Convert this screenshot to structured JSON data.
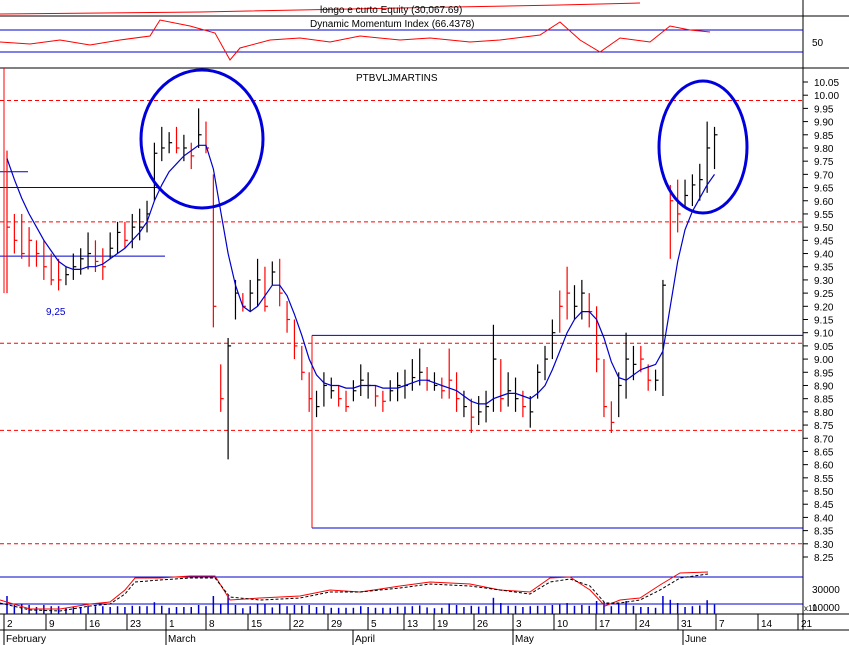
{
  "panels": {
    "equity": {
      "title": "longo e curto Equity (30,067.69)"
    },
    "dmi": {
      "title": "Dynamic Momentum Index (66.4378)",
      "axis_label": "50"
    },
    "main": {
      "title": "PTBVLJMARTINS",
      "annotation": "9,25"
    },
    "volume": {
      "axis_top": "30000",
      "axis_bottom": "10000",
      "unit_label": "x10"
    }
  },
  "colors": {
    "up": "#000000",
    "down": "#ff0000",
    "ma": "#0000cc",
    "line_blue": "#0000cc",
    "dash_red": "#ff0000",
    "circle": "#0000dd"
  },
  "chart_data": {
    "type": "bar",
    "title": "PTBVLJMARTINS",
    "ylim": [
      8.2,
      10.1
    ],
    "yticks": [
      "10.05",
      "10.00",
      "9.95",
      "9.90",
      "9.85",
      "9.80",
      "9.75",
      "9.70",
      "9.65",
      "9.60",
      "9.55",
      "9.50",
      "9.45",
      "9.40",
      "9.35",
      "9.30",
      "9.25",
      "9.20",
      "9.15",
      "9.10",
      "9.05",
      "9.00",
      "8.95",
      "8.90",
      "8.85",
      "8.80",
      "8.75",
      "8.70",
      "8.65",
      "8.60",
      "8.55",
      "8.50",
      "8.45",
      "8.40",
      "8.35",
      "8.30",
      "8.25"
    ],
    "x_day_labels": [
      "2",
      "9",
      "16",
      "23",
      "1",
      "8",
      "15",
      "22",
      "29",
      "5",
      "13",
      "19",
      "26",
      "3",
      "10",
      "17",
      "24",
      "31",
      "7",
      "14",
      "21"
    ],
    "x_month_labels": [
      "February",
      "March",
      "April",
      "May",
      "June"
    ],
    "reference_levels": {
      "red_dashed": [
        9.98,
        9.52,
        9.06,
        8.73,
        8.3
      ],
      "blue_solid": [
        9.71,
        9.65,
        9.39,
        9.09,
        8.36
      ]
    },
    "bars": [
      {
        "h": 9.79,
        "l": 9.25,
        "c": 9.5,
        "up": 0
      },
      {
        "h": 9.55,
        "l": 9.4,
        "c": 9.45,
        "up": 0
      },
      {
        "h": 9.55,
        "l": 9.38,
        "c": 9.4,
        "up": 0
      },
      {
        "h": 9.5,
        "l": 9.35,
        "c": 9.45,
        "up": 0
      },
      {
        "h": 9.45,
        "l": 9.35,
        "c": 9.4,
        "up": 0
      },
      {
        "h": 9.45,
        "l": 9.3,
        "c": 9.35,
        "up": 0
      },
      {
        "h": 9.4,
        "l": 9.28,
        "c": 9.3,
        "up": 0
      },
      {
        "h": 9.38,
        "l": 9.26,
        "c": 9.3,
        "up": 0
      },
      {
        "h": 9.35,
        "l": 9.28,
        "c": 9.32,
        "up": 1
      },
      {
        "h": 9.4,
        "l": 9.3,
        "c": 9.35,
        "up": 1
      },
      {
        "h": 9.42,
        "l": 9.32,
        "c": 9.38,
        "up": 1
      },
      {
        "h": 9.48,
        "l": 9.34,
        "c": 9.4,
        "up": 1
      },
      {
        "h": 9.45,
        "l": 9.33,
        "c": 9.37,
        "up": 0
      },
      {
        "h": 9.42,
        "l": 9.3,
        "c": 9.35,
        "up": 0
      },
      {
        "h": 9.48,
        "l": 9.38,
        "c": 9.42,
        "up": 1
      },
      {
        "h": 9.52,
        "l": 9.4,
        "c": 9.48,
        "up": 1
      },
      {
        "h": 9.52,
        "l": 9.42,
        "c": 9.45,
        "up": 0
      },
      {
        "h": 9.55,
        "l": 9.42,
        "c": 9.5,
        "up": 1
      },
      {
        "h": 9.57,
        "l": 9.45,
        "c": 9.5,
        "up": 1
      },
      {
        "h": 9.6,
        "l": 9.48,
        "c": 9.55,
        "up": 1
      },
      {
        "h": 9.82,
        "l": 9.6,
        "c": 9.78,
        "up": 1
      },
      {
        "h": 9.88,
        "l": 9.75,
        "c": 9.8,
        "up": 1
      },
      {
        "h": 9.86,
        "l": 9.78,
        "c": 9.82,
        "up": 1
      },
      {
        "h": 9.88,
        "l": 9.78,
        "c": 9.8,
        "up": 0
      },
      {
        "h": 9.85,
        "l": 9.75,
        "c": 9.8,
        "up": 1
      },
      {
        "h": 9.82,
        "l": 9.72,
        "c": 9.77,
        "up": 0
      },
      {
        "h": 9.95,
        "l": 9.8,
        "c": 9.85,
        "up": 1
      },
      {
        "h": 9.9,
        "l": 9.78,
        "c": 9.8,
        "up": 0
      },
      {
        "h": 9.7,
        "l": 9.12,
        "c": 9.2,
        "up": 0
      },
      {
        "h": 8.98,
        "l": 8.8,
        "c": 8.85,
        "up": 0
      },
      {
        "h": 9.08,
        "l": 8.62,
        "c": 9.05,
        "up": 1
      },
      {
        "h": 9.3,
        "l": 9.15,
        "c": 9.25,
        "up": 1
      },
      {
        "h": 9.25,
        "l": 9.18,
        "c": 9.2,
        "up": 0
      },
      {
        "h": 9.3,
        "l": 9.18,
        "c": 9.25,
        "up": 1
      },
      {
        "h": 9.38,
        "l": 9.2,
        "c": 9.3,
        "up": 1
      },
      {
        "h": 9.35,
        "l": 9.18,
        "c": 9.2,
        "up": 0
      },
      {
        "h": 9.37,
        "l": 9.28,
        "c": 9.33,
        "up": 1
      },
      {
        "h": 9.38,
        "l": 9.2,
        "c": 9.25,
        "up": 0
      },
      {
        "h": 9.22,
        "l": 9.1,
        "c": 9.15,
        "up": 0
      },
      {
        "h": 9.15,
        "l": 9.0,
        "c": 9.05,
        "up": 0
      },
      {
        "h": 9.05,
        "l": 8.92,
        "c": 8.95,
        "up": 0
      },
      {
        "h": 8.95,
        "l": 8.8,
        "c": 8.85,
        "up": 0
      },
      {
        "h": 8.88,
        "l": 8.78,
        "c": 8.82,
        "up": 1
      },
      {
        "h": 8.95,
        "l": 8.82,
        "c": 8.9,
        "up": 1
      },
      {
        "h": 8.93,
        "l": 8.85,
        "c": 8.88,
        "up": 1
      },
      {
        "h": 8.9,
        "l": 8.82,
        "c": 8.85,
        "up": 0
      },
      {
        "h": 8.88,
        "l": 8.8,
        "c": 8.82,
        "up": 0
      },
      {
        "h": 8.92,
        "l": 8.84,
        "c": 8.88,
        "up": 1
      },
      {
        "h": 8.98,
        "l": 8.86,
        "c": 8.92,
        "up": 1
      },
      {
        "h": 8.95,
        "l": 8.85,
        "c": 8.9,
        "up": 1
      },
      {
        "h": 8.9,
        "l": 8.82,
        "c": 8.86,
        "up": 0
      },
      {
        "h": 8.88,
        "l": 8.8,
        "c": 8.84,
        "up": 0
      },
      {
        "h": 8.92,
        "l": 8.84,
        "c": 8.88,
        "up": 1
      },
      {
        "h": 8.95,
        "l": 8.84,
        "c": 8.9,
        "up": 1
      },
      {
        "h": 8.96,
        "l": 8.85,
        "c": 8.9,
        "up": 1
      },
      {
        "h": 9.0,
        "l": 8.88,
        "c": 8.93,
        "up": 1
      },
      {
        "h": 9.04,
        "l": 8.9,
        "c": 8.95,
        "up": 1
      },
      {
        "h": 8.97,
        "l": 8.88,
        "c": 8.92,
        "up": 0
      },
      {
        "h": 8.95,
        "l": 8.88,
        "c": 8.9,
        "up": 1
      },
      {
        "h": 8.93,
        "l": 8.85,
        "c": 8.88,
        "up": 0
      },
      {
        "h": 9.04,
        "l": 8.85,
        "c": 8.92,
        "up": 0
      },
      {
        "h": 8.95,
        "l": 8.8,
        "c": 8.85,
        "up": 0
      },
      {
        "h": 8.88,
        "l": 8.78,
        "c": 8.82,
        "up": 1
      },
      {
        "h": 8.85,
        "l": 8.72,
        "c": 8.78,
        "up": 0
      },
      {
        "h": 8.86,
        "l": 8.75,
        "c": 8.8,
        "up": 1
      },
      {
        "h": 8.88,
        "l": 8.76,
        "c": 8.82,
        "up": 1
      },
      {
        "h": 9.13,
        "l": 8.8,
        "c": 9.0,
        "up": 1
      },
      {
        "h": 9.0,
        "l": 8.8,
        "c": 8.85,
        "up": 0
      },
      {
        "h": 8.95,
        "l": 8.82,
        "c": 8.88,
        "up": 1
      },
      {
        "h": 8.93,
        "l": 8.8,
        "c": 8.85,
        "up": 1
      },
      {
        "h": 8.88,
        "l": 8.78,
        "c": 8.82,
        "up": 0
      },
      {
        "h": 8.86,
        "l": 8.74,
        "c": 8.8,
        "up": 1
      },
      {
        "h": 8.98,
        "l": 8.85,
        "c": 8.95,
        "up": 1
      },
      {
        "h": 9.05,
        "l": 8.92,
        "c": 9.0,
        "up": 1
      },
      {
        "h": 9.15,
        "l": 9.0,
        "c": 9.1,
        "up": 1
      },
      {
        "h": 9.26,
        "l": 9.1,
        "c": 9.2,
        "up": 0
      },
      {
        "h": 9.35,
        "l": 9.15,
        "c": 9.25,
        "up": 0
      },
      {
        "h": 9.28,
        "l": 9.15,
        "c": 9.2,
        "up": 1
      },
      {
        "h": 9.3,
        "l": 9.15,
        "c": 9.25,
        "up": 1
      },
      {
        "h": 9.25,
        "l": 9.12,
        "c": 9.18,
        "up": 0
      },
      {
        "h": 9.2,
        "l": 8.95,
        "c": 9.0,
        "up": 0
      },
      {
        "h": 9.0,
        "l": 8.78,
        "c": 8.82,
        "up": 0
      },
      {
        "h": 8.84,
        "l": 8.72,
        "c": 8.76,
        "up": 0
      },
      {
        "h": 8.95,
        "l": 8.78,
        "c": 8.9,
        "up": 1
      },
      {
        "h": 9.1,
        "l": 8.85,
        "c": 9.0,
        "up": 1
      },
      {
        "h": 9.05,
        "l": 8.92,
        "c": 8.98,
        "up": 1
      },
      {
        "h": 9.05,
        "l": 8.95,
        "c": 9.0,
        "up": 0
      },
      {
        "h": 8.98,
        "l": 8.88,
        "c": 8.92,
        "up": 0
      },
      {
        "h": 8.96,
        "l": 8.88,
        "c": 8.92,
        "up": 1
      },
      {
        "h": 9.3,
        "l": 8.86,
        "c": 9.28,
        "up": 1
      },
      {
        "h": 9.66,
        "l": 9.38,
        "c": 9.6,
        "up": 0
      },
      {
        "h": 9.68,
        "l": 9.48,
        "c": 9.55,
        "up": 0
      },
      {
        "h": 9.68,
        "l": 9.58,
        "c": 9.62,
        "up": 1
      },
      {
        "h": 9.7,
        "l": 9.58,
        "c": 9.66,
        "up": 1
      },
      {
        "h": 9.74,
        "l": 9.6,
        "c": 9.68,
        "up": 1
      },
      {
        "h": 9.9,
        "l": 9.63,
        "c": 9.8,
        "up": 1
      },
      {
        "h": 9.88,
        "l": 9.72,
        "c": 9.85,
        "up": 1
      }
    ],
    "ma_line": [
      9.76,
      9.68,
      9.61,
      9.55,
      9.5,
      9.45,
      9.41,
      9.37,
      9.35,
      9.34,
      9.34,
      9.35,
      9.35,
      9.36,
      9.38,
      9.4,
      9.42,
      9.45,
      9.48,
      9.52,
      9.6,
      9.66,
      9.71,
      9.74,
      9.77,
      9.79,
      9.81,
      9.81,
      9.72,
      9.56,
      9.4,
      9.28,
      9.2,
      9.18,
      9.2,
      9.24,
      9.28,
      9.28,
      9.24,
      9.17,
      9.09,
      9.0,
      8.94,
      8.91,
      8.9,
      8.9,
      8.89,
      8.89,
      8.9,
      8.9,
      8.9,
      8.89,
      8.89,
      8.89,
      8.9,
      8.91,
      8.92,
      8.92,
      8.91,
      8.9,
      8.89,
      8.88,
      8.86,
      8.84,
      8.83,
      8.83,
      8.85,
      8.86,
      8.87,
      8.87,
      8.86,
      8.85,
      8.87,
      8.9,
      8.96,
      9.03,
      9.1,
      9.15,
      9.18,
      9.18,
      9.15,
      9.08,
      8.99,
      8.93,
      8.92,
      8.94,
      8.96,
      8.97,
      8.98,
      9.03,
      9.2,
      9.37,
      9.49,
      9.56,
      9.61,
      9.66,
      9.7
    ]
  }
}
